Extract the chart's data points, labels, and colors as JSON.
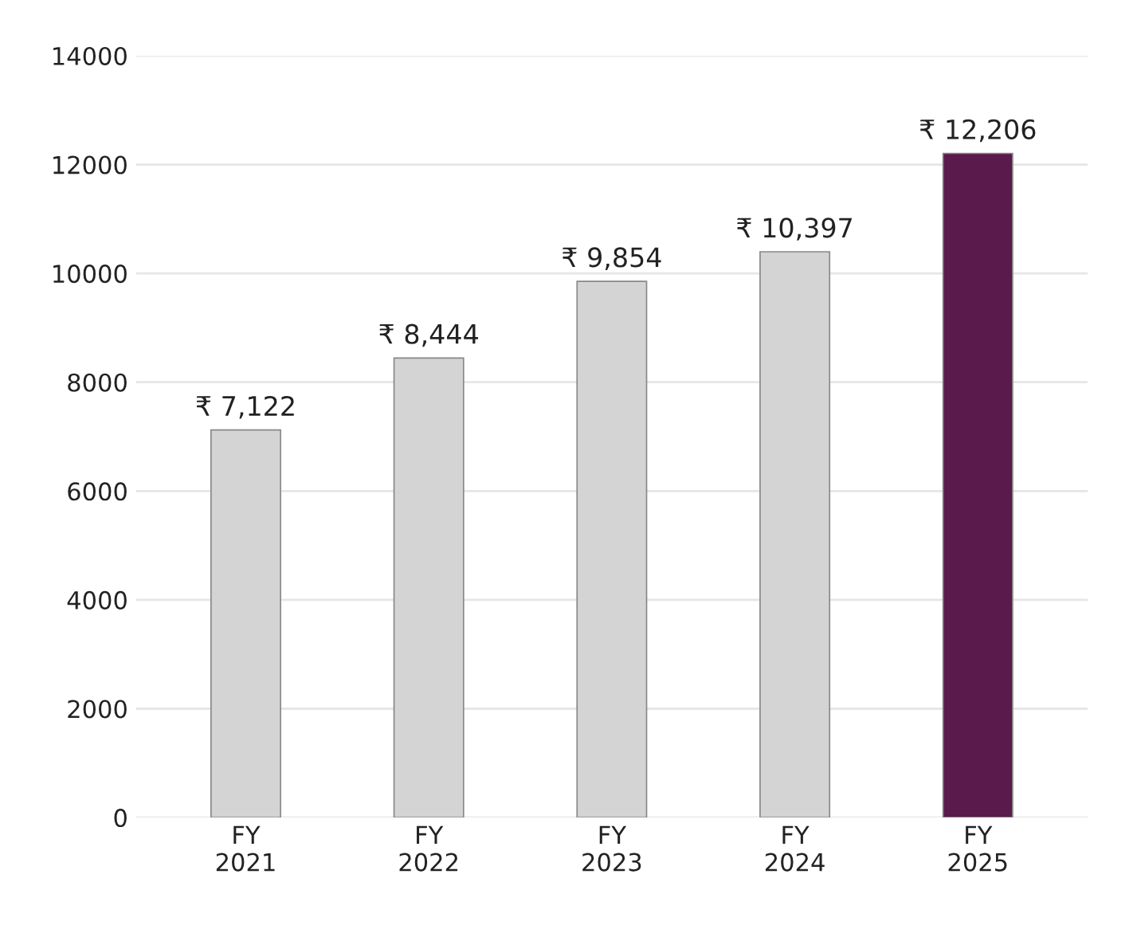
{
  "chart_data": {
    "type": "bar",
    "categories": [
      "FY\n2021",
      "FY\n2022",
      "FY\n2023",
      "FY\n2024",
      "FY\n2025"
    ],
    "values": [
      7122,
      8444,
      9854,
      10397,
      12206
    ],
    "colors": [
      "#d4d4d4",
      "#d4d4d4",
      "#d4d4d4",
      "#d4d4d4",
      "#5a1a4c"
    ],
    "value_labels": [
      "₹ 7,122",
      "₹ 8,444",
      "₹ 9,854",
      "₹ 10,397",
      "₹ 12,206"
    ],
    "ylim": [
      0,
      14000
    ],
    "yticks": [
      0,
      2000,
      4000,
      6000,
      8000,
      10000,
      12000,
      14000
    ],
    "grid": "y"
  }
}
